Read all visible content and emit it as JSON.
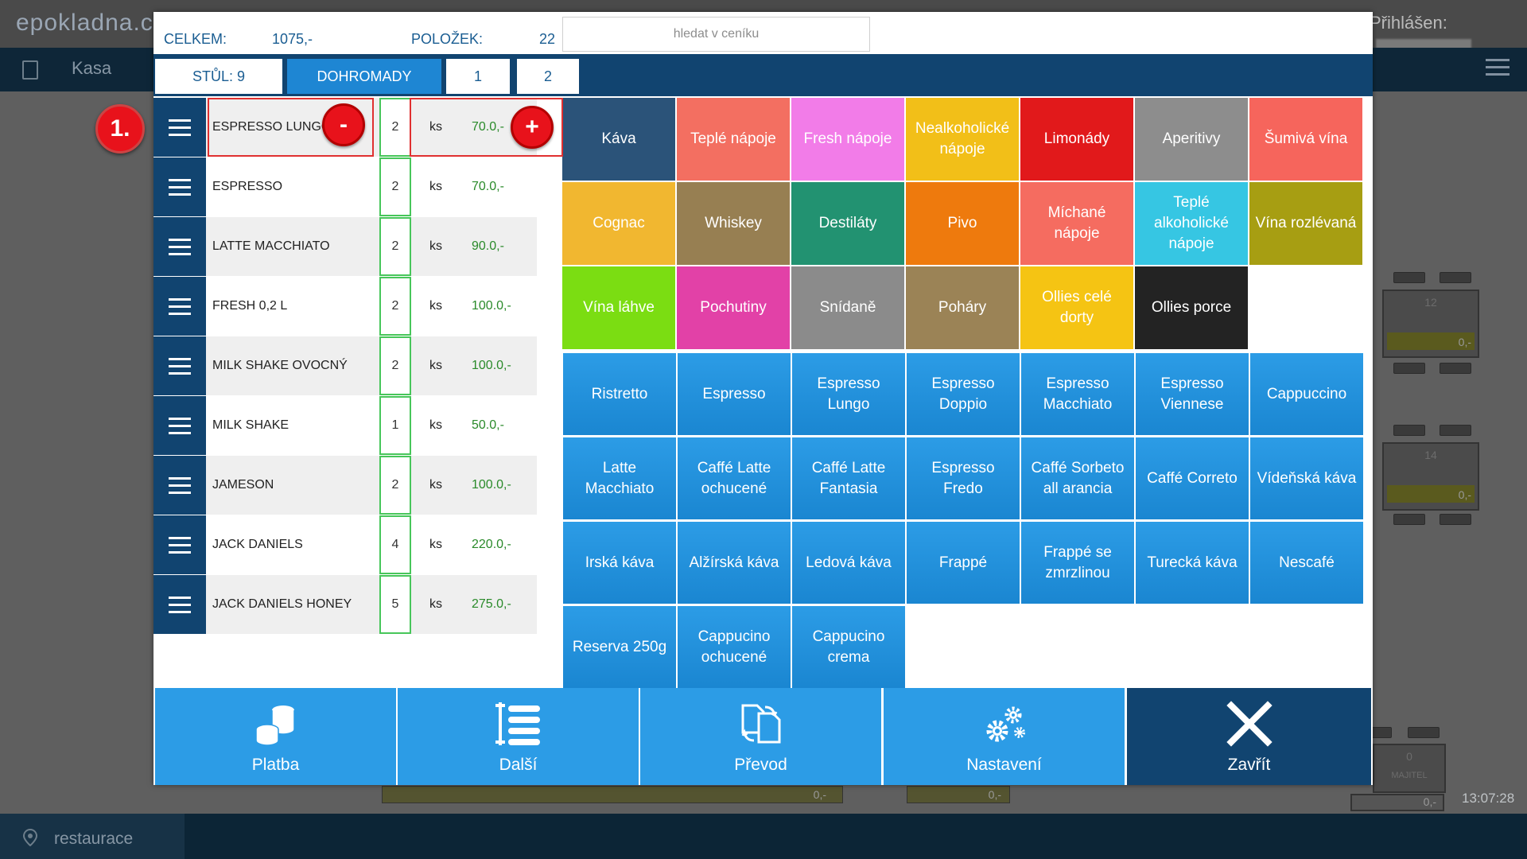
{
  "background": {
    "logo": "epokladna.cz",
    "user_label": "Přihlášen:",
    "nav_label": "Kasa",
    "location_label": "restaurace",
    "time": "13:07:28",
    "table_labels": [
      "12",
      "14",
      "0"
    ],
    "table_values": [
      "0,-",
      "0,-",
      "0,-",
      "0,-",
      "0,-"
    ],
    "owner_label": "MAJITEL"
  },
  "header": {
    "total_label": "CELKEM:",
    "total_value": "1075,-",
    "items_label": "POLOŽEK:",
    "items_value": "22",
    "search_placeholder": "hledat v ceníku"
  },
  "tabs": [
    {
      "label": "STŮL: 9",
      "active": false
    },
    {
      "label": "DOHROMADY",
      "active": true
    },
    {
      "label": "1",
      "active": false
    },
    {
      "label": "2",
      "active": false
    }
  ],
  "step_badge": "1.",
  "minus_label": "-",
  "plus_label": "+",
  "order_items": [
    {
      "name": "ESPRESSO LUNGO",
      "qty": "2",
      "unit": "ks",
      "price": "70.0,-"
    },
    {
      "name": "ESPRESSO",
      "qty": "2",
      "unit": "ks",
      "price": "70.0,-"
    },
    {
      "name": "LATTE MACCHIATO",
      "qty": "2",
      "unit": "ks",
      "price": "90.0,-"
    },
    {
      "name": "FRESH 0,2 L",
      "qty": "2",
      "unit": "ks",
      "price": "100.0,-"
    },
    {
      "name": "MILK SHAKE OVOCNÝ",
      "qty": "2",
      "unit": "ks",
      "price": "100.0,-"
    },
    {
      "name": "MILK SHAKE",
      "qty": "1",
      "unit": "ks",
      "price": "50.0,-"
    },
    {
      "name": "JAMESON",
      "qty": "2",
      "unit": "ks",
      "price": "100.0,-"
    },
    {
      "name": "JACK DANIELS",
      "qty": "4",
      "unit": "ks",
      "price": "220.0,-"
    },
    {
      "name": "JACK DANIELS HONEY",
      "qty": "5",
      "unit": "ks",
      "price": "275.0,-"
    }
  ],
  "categories": [
    {
      "label": "Káva",
      "color": "#2b5379"
    },
    {
      "label": "Teplé nápoje",
      "color": "#f36f61"
    },
    {
      "label": "Fresh nápoje",
      "color": "#f27ce8"
    },
    {
      "label": "Nealkoholické nápoje",
      "color": "#f2bf18"
    },
    {
      "label": "Limonády",
      "color": "#e1191b"
    },
    {
      "label": "Aperitivy",
      "color": "#8d8d8d"
    },
    {
      "label": "Šumivá vína",
      "color": "#f6655c"
    },
    {
      "label": "Cognac",
      "color": "#f1b730"
    },
    {
      "label": "Whiskey",
      "color": "#977f52"
    },
    {
      "label": "Destiláty",
      "color": "#229271"
    },
    {
      "label": "Pivo",
      "color": "#ee7a0d"
    },
    {
      "label": "Míchané nápoje",
      "color": "#f56c60"
    },
    {
      "label": "Teplé alkoholické nápoje",
      "color": "#36c6e3"
    },
    {
      "label": "Vína rozlévaná",
      "color": "#a79e12"
    },
    {
      "label": "Vína láhve",
      "color": "#7bdd12"
    },
    {
      "label": "Pochutiny",
      "color": "#e241a7"
    },
    {
      "label": "Snídaně",
      "color": "#8b8b8b"
    },
    {
      "label": "Poháry",
      "color": "#9b8356"
    },
    {
      "label": "Ollies celé dorty",
      "color": "#f5c413"
    },
    {
      "label": "Ollies porce",
      "color": "#232323"
    }
  ],
  "products": [
    "Ristretto",
    "Espresso",
    "Espresso Lungo",
    "Espresso Doppio",
    "Espresso Macchiato",
    "Espresso Viennese",
    "Cappuccino",
    "Latte Macchiato",
    "Caffé Latte ochucené",
    "Caffé Latte Fantasia",
    "Espresso Fredo",
    "Caffé Sorbeto all arancia",
    "Caffé Correto",
    "Vídeňská káva",
    "Irská káva",
    "Alžírská káva",
    "Ledová káva",
    "Frappé",
    "Frappé se zmrzlinou",
    "Turecká káva",
    "Nescafé",
    "Reserva 250g",
    "Cappucino ochucené",
    "Cappucino crema"
  ],
  "actions": [
    {
      "label": "Platba",
      "icon": "coins-icon"
    },
    {
      "label": "Další",
      "icon": "list-icon"
    },
    {
      "label": "Převod",
      "icon": "transfer-icon"
    },
    {
      "label": "Nastavení",
      "icon": "gears-icon"
    },
    {
      "label": "Zavřít",
      "icon": "close-icon"
    }
  ]
}
